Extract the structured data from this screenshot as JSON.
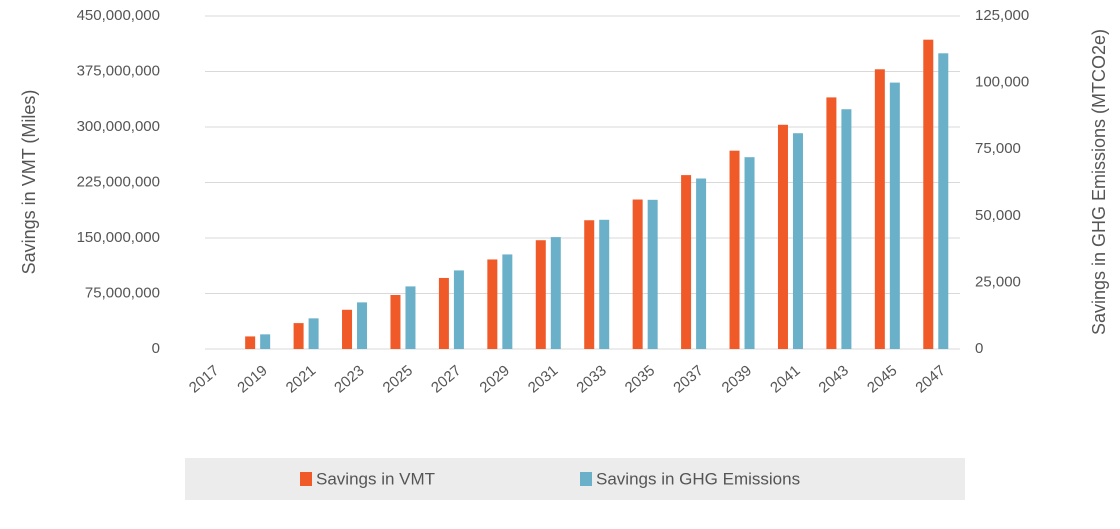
{
  "chart_data": {
    "type": "bar",
    "categories": [
      "2017",
      "2019",
      "2021",
      "2023",
      "2025",
      "2027",
      "2029",
      "2031",
      "2033",
      "2035",
      "2037",
      "2039",
      "2041",
      "2043",
      "2045",
      "2047"
    ],
    "series": [
      {
        "name": "Savings in VMT",
        "color": "#f05a28",
        "axis": "y",
        "values": [
          0,
          17000000,
          35000000,
          53000000,
          73000000,
          96000000,
          121000000,
          147000000,
          174000000,
          202000000,
          235000000,
          268000000,
          303000000,
          340000000,
          378000000,
          418000000
        ]
      },
      {
        "name": "Savings in GHG Emissions",
        "color": "#6ab0c8",
        "axis": "y2",
        "values": [
          0,
          5500,
          11500,
          17500,
          23500,
          29500,
          35500,
          42000,
          48500,
          56000,
          64000,
          72000,
          81000,
          90000,
          100000,
          111000
        ]
      }
    ],
    "ylabel": "Savings in VMT (Miles)",
    "y2label": "Savings in GHG Emissions (MTCO2e)",
    "ylim": [
      0,
      450000000
    ],
    "yticks": [
      {
        "value": 0,
        "label": "0"
      },
      {
        "value": 75000000,
        "label": "75,000,000"
      },
      {
        "value": 150000000,
        "label": "150,000,000"
      },
      {
        "value": 225000000,
        "label": "225,000,000"
      },
      {
        "value": 300000000,
        "label": "300,000,000"
      },
      {
        "value": 375000000,
        "label": "375,000,000"
      },
      {
        "value": 450000000,
        "label": "450,000,000"
      }
    ],
    "y2lim": [
      0,
      125000
    ],
    "y2ticks": [
      {
        "value": 0,
        "label": "0"
      },
      {
        "value": 25000,
        "label": "25,000"
      },
      {
        "value": 50000,
        "label": "50,000"
      },
      {
        "value": 75000,
        "label": "75,000"
      },
      {
        "value": 100000,
        "label": "100,000"
      },
      {
        "value": 125000,
        "label": "125,000"
      }
    ],
    "grid": true,
    "legend": "bottom"
  }
}
